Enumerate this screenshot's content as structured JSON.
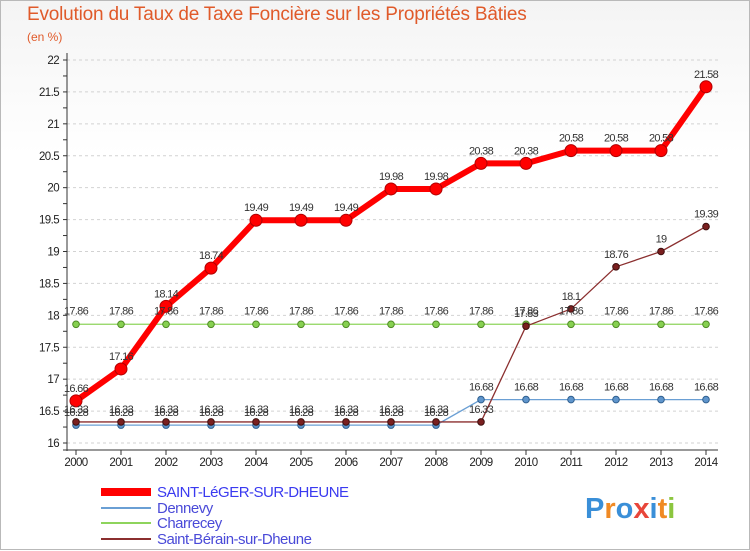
{
  "chart_data": {
    "type": "line",
    "title": "Evolution du Taux de Taxe Foncière sur les Propriétés Bâties",
    "subtitle": "(en %)",
    "xlabel": "",
    "ylabel": "",
    "categories": [
      "2000",
      "2001",
      "2002",
      "2003",
      "2004",
      "2005",
      "2006",
      "2007",
      "2008",
      "2009",
      "2010",
      "2011",
      "2012",
      "2013",
      "2014"
    ],
    "ylim": [
      16,
      22
    ],
    "yticks": [
      "16",
      "16.5",
      "17",
      "17.5",
      "18",
      "18.5",
      "19",
      "19.5",
      "20",
      "20.5",
      "21",
      "21.5",
      "22"
    ],
    "grid": "horizontal",
    "series": [
      {
        "name": "SAINT-LéGER-SUR-DHEUNE",
        "color": "#ff0000",
        "values": [
          16.66,
          17.16,
          18.14,
          18.74,
          19.49,
          19.49,
          19.49,
          19.98,
          19.98,
          20.38,
          20.38,
          20.58,
          20.58,
          20.58,
          21.58
        ],
        "labels": [
          "16.66",
          "17.16",
          "18.14",
          "18.74",
          "19.49",
          "19.49",
          "19.49",
          "19.98",
          "19.98",
          "20.38",
          "20.38",
          "20.58",
          "20.58",
          "20.58",
          "21.58"
        ]
      },
      {
        "name": "Dennevy",
        "color": "#6a9fd4",
        "values": [
          16.28,
          16.28,
          16.28,
          16.28,
          16.28,
          16.28,
          16.28,
          16.28,
          16.28,
          16.68,
          16.68,
          16.68,
          16.68,
          16.68,
          16.68
        ],
        "labels": [
          "16.28",
          "16.28",
          "16.28",
          "16.28",
          "16.28",
          "16.28",
          "16.28",
          "16.28",
          "16.28",
          "16.68",
          "16.68",
          "16.68",
          "16.68",
          "16.68",
          "16.68"
        ]
      },
      {
        "name": "Charrecey",
        "color": "#8ed45c",
        "values": [
          17.86,
          17.86,
          17.86,
          17.86,
          17.86,
          17.86,
          17.86,
          17.86,
          17.86,
          17.86,
          17.86,
          17.86,
          17.86,
          17.86,
          17.86
        ],
        "labels": [
          "17.86",
          "17.86",
          "17.86",
          "17.86",
          "17.86",
          "17.86",
          "17.86",
          "17.86",
          "17.86",
          "17.86",
          "17.86",
          "17.86",
          "17.86",
          "17.86",
          "17.86"
        ]
      },
      {
        "name": "Saint-Bérain-sur-Dheune",
        "color": "#8b2f2f",
        "values": [
          16.33,
          16.33,
          16.33,
          16.33,
          16.33,
          16.33,
          16.33,
          16.33,
          16.33,
          16.33,
          17.83,
          18.1,
          18.76,
          19,
          19.39
        ],
        "labels": [
          "16.33",
          "16.33",
          "16.33",
          "16.33",
          "16.33",
          "16.33",
          "16.33",
          "16.33",
          "16.33",
          "16.33",
          "17.83",
          "18.1",
          "18.76",
          "19",
          "19.39"
        ]
      }
    ],
    "legend_position": "bottom-left"
  },
  "logo": {
    "text": "Proxiti",
    "letters": [
      "P",
      "r",
      "o",
      "x",
      "i",
      "t",
      "i"
    ],
    "colors": [
      "#3a8fd8",
      "#f08a24",
      "#3a8fd8",
      "#e8463a",
      "#3a8fd8",
      "#f08a24",
      "#8cc63f"
    ]
  }
}
